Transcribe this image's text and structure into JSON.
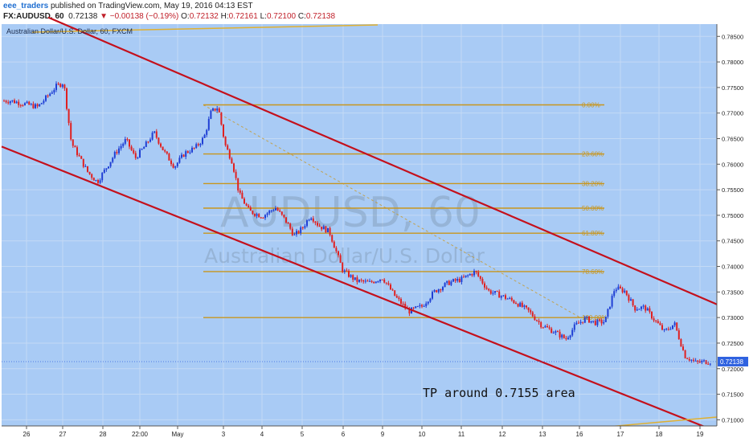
{
  "header": {
    "author": "eee_traders",
    "published": "published on TradingView.com, May 19, 2016 04:13 EST",
    "symbol": "FX:AUDUSD, 60",
    "last": "0.72138",
    "change": "▼ −0.00138 (−0.19%)",
    "open_label": "O:",
    "open": "0.72132",
    "high_label": "H:",
    "high": "0.72161",
    "low_label": "L:",
    "low": "0.72100",
    "close_label": "C:",
    "close": "0.72138"
  },
  "chart_title": "Australian Dollar/U.S. Dollar, 60, FXCM",
  "watermark": {
    "symbol": "AUDUSD, 60",
    "name": "Australian Dollar/U.S. Dollar"
  },
  "annotation": "TP around 0.7155 area",
  "colors": {
    "background": "#a9cbf5",
    "candle_up": "#1f3fd4",
    "candle_down": "#e02020",
    "channel": "#c4101c",
    "fib": "#c8961e",
    "price_tag": "#2f62e0"
  },
  "chart_data": {
    "type": "candlestick",
    "title": "Australian Dollar/U.S. Dollar, 60, FXCM",
    "y_ticks": [
      "0.78500",
      "0.78000",
      "0.77500",
      "0.77000",
      "0.76500",
      "0.76000",
      "0.75500",
      "0.75000",
      "0.74500",
      "0.74000",
      "0.73500",
      "0.73000",
      "0.72500",
      "0.72000",
      "0.71500",
      "0.71000"
    ],
    "y_range": [
      0.7088,
      0.7874
    ],
    "x_ticks": [
      "26",
      "27",
      "28",
      "22:00",
      "May",
      "3",
      "4",
      "5",
      "6",
      "9",
      "10",
      "11",
      "12",
      "13",
      "16",
      "17",
      "18",
      "19"
    ],
    "current_price": "0.72138",
    "path": [
      [
        "26",
        0.7724
      ],
      [
        "26",
        0.7718
      ],
      [
        "26",
        0.7712
      ],
      [
        "27",
        0.7735
      ],
      [
        "27",
        0.7752
      ],
      [
        "27",
        0.776
      ],
      [
        "27",
        0.7642
      ],
      [
        "27",
        0.7615
      ],
      [
        "28",
        0.7585
      ],
      [
        "28",
        0.7565
      ],
      [
        "28",
        0.7595
      ],
      [
        "28",
        0.7625
      ],
      [
        "22:00",
        0.7648
      ],
      [
        "22:00",
        0.7612
      ],
      [
        "22:00",
        0.7635
      ],
      [
        "22:00",
        0.7662
      ],
      [
        "May",
        0.7625
      ],
      [
        "May",
        0.7595
      ],
      [
        "May",
        0.7622
      ],
      [
        "May",
        0.7632
      ],
      [
        "3",
        0.7652
      ],
      [
        "3",
        0.7702
      ],
      [
        "3",
        0.7712
      ],
      [
        "3",
        0.7638
      ],
      [
        "3",
        0.7605
      ],
      [
        "3",
        0.7542
      ],
      [
        "4",
        0.7508
      ],
      [
        "4",
        0.7498
      ],
      [
        "4",
        0.7515
      ],
      [
        "5",
        0.7488
      ],
      [
        "5",
        0.746
      ],
      [
        "5",
        0.7475
      ],
      [
        "5",
        0.75
      ],
      [
        "5",
        0.748
      ],
      [
        "6",
        0.7468
      ],
      [
        "6",
        0.7392
      ],
      [
        "6",
        0.7372
      ],
      [
        "9",
        0.7368
      ],
      [
        "9",
        0.7378
      ],
      [
        "9",
        0.734
      ],
      [
        "10",
        0.7312
      ],
      [
        "10",
        0.7322
      ],
      [
        "10",
        0.7352
      ],
      [
        "11",
        0.7368
      ],
      [
        "11",
        0.7375
      ],
      [
        "11",
        0.739
      ],
      [
        "12",
        0.7352
      ],
      [
        "12",
        0.7342
      ],
      [
        "12",
        0.733
      ],
      [
        "13",
        0.7312
      ],
      [
        "13",
        0.7285
      ],
      [
        "13",
        0.7272
      ],
      [
        "16",
        0.7258
      ],
      [
        "16",
        0.7285
      ],
      [
        "16",
        0.7298
      ],
      [
        "16",
        0.729
      ],
      [
        "17",
        0.7292
      ],
      [
        "17",
        0.7358
      ],
      [
        "17",
        0.7352
      ],
      [
        "17",
        0.7318
      ],
      [
        "18",
        0.732
      ],
      [
        "18",
        0.7295
      ],
      [
        "18",
        0.7272
      ],
      [
        "18",
        0.7288
      ],
      [
        "19",
        0.7225
      ],
      [
        "19",
        0.7212
      ],
      [
        "19",
        0.7214
      ]
    ],
    "fibonacci": {
      "levels": [
        "0.00%",
        "23.60%",
        "38.20%",
        "50.00%",
        "61.80%",
        "78.60%",
        "100.00%"
      ],
      "prices": [
        0.7716,
        0.762,
        0.7562,
        0.7514,
        0.7465,
        0.739,
        0.73
      ]
    },
    "channel": {
      "upper": [
        [
          "27",
          0.7875
        ],
        [
          "19",
          0.734
        ]
      ],
      "lower": [
        [
          "26",
          0.7615
        ],
        [
          "19",
          0.709
        ]
      ]
    }
  }
}
